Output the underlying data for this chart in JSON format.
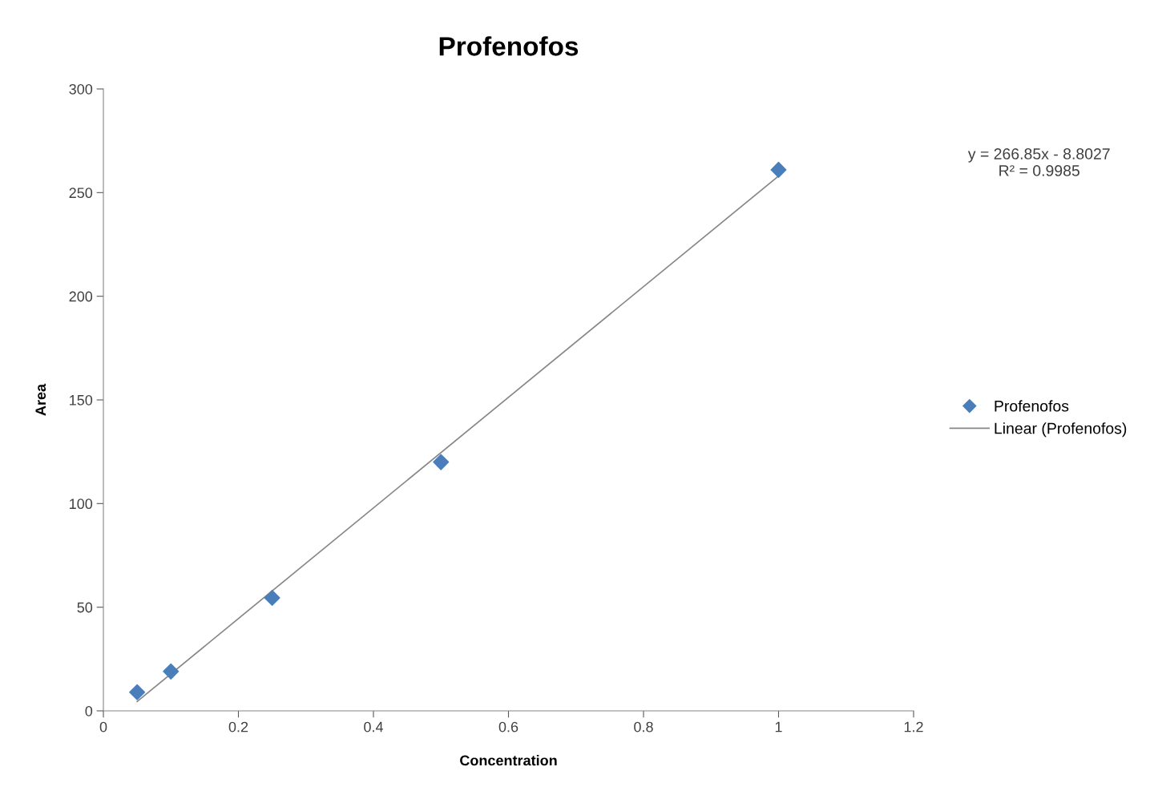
{
  "chart_data": {
    "type": "scatter",
    "title": "Profenofos",
    "xlabel": "Concentration",
    "ylabel": "Area",
    "series": [
      {
        "name": "Profenofos",
        "color": "#4a7ebb",
        "marker": "diamond",
        "x": [
          0.05,
          0.1,
          0.25,
          0.5,
          1
        ],
        "values": [
          9,
          19,
          54.5,
          120,
          261
        ]
      },
      {
        "name": "Linear (Profenofos)",
        "type": "line",
        "color": "#868686",
        "line_style": "solid",
        "x": [
          0.05,
          1
        ],
        "values": [
          4.5,
          258
        ]
      }
    ],
    "annotations": [
      "y = 266.85x - 8.8027\nR² = 0.9985"
    ],
    "xlim": [
      0,
      1.2
    ],
    "xticks": [
      0,
      0.2,
      0.4,
      0.6,
      0.8,
      1,
      1.2
    ],
    "ylim": [
      0,
      300
    ],
    "yticks": [
      0,
      50,
      100,
      150,
      200,
      250,
      300
    ],
    "grid": false,
    "legend": "right"
  }
}
